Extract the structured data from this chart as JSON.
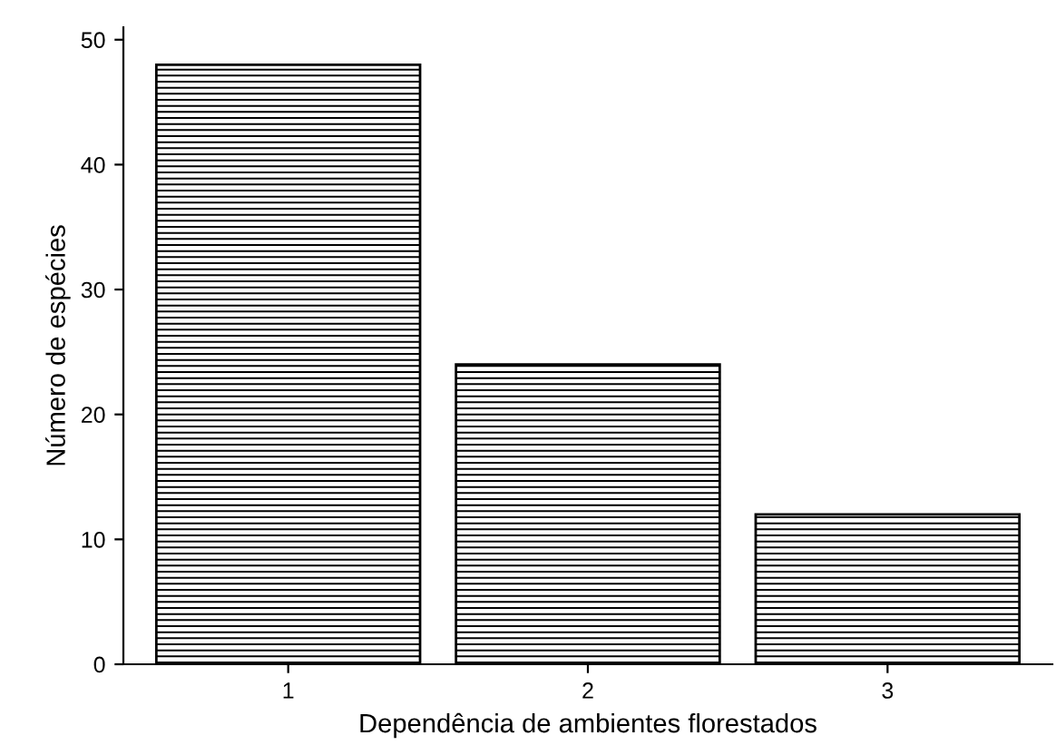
{
  "chart_data": {
    "type": "bar",
    "xlabel": "Dependência de ambientes florestados",
    "ylabel": "Número de espécies",
    "categories": [
      "1",
      "2",
      "3"
    ],
    "values": [
      48,
      24,
      12
    ],
    "color": "#000000",
    "ylim": [
      0,
      51
    ],
    "yticks": [
      0,
      10,
      20,
      30,
      40,
      50
    ],
    "grid": false
  }
}
